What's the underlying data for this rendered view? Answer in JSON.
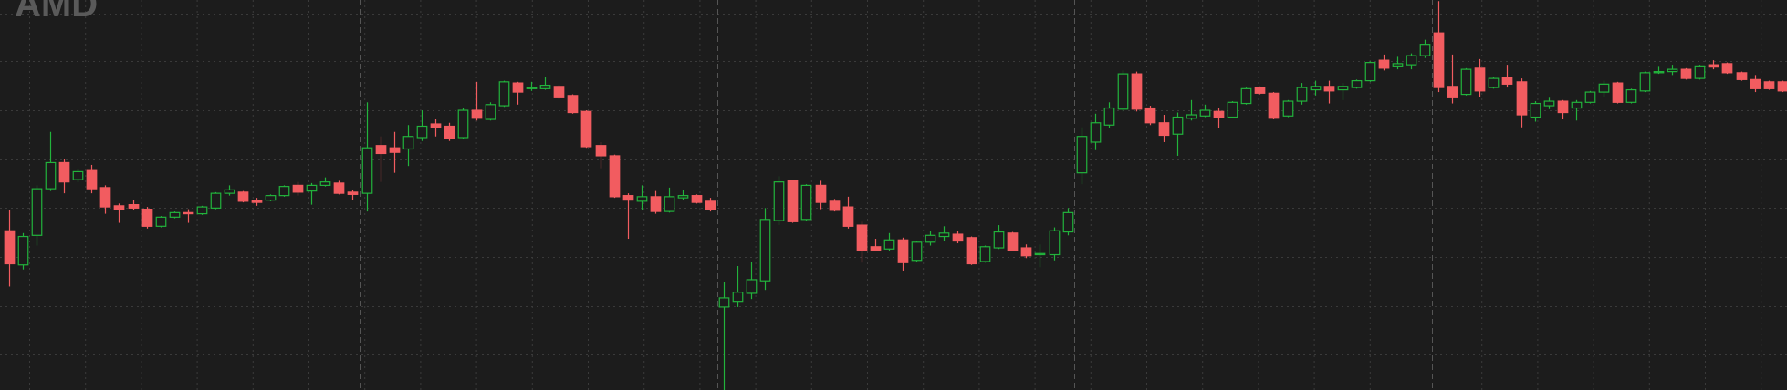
{
  "chart_data": {
    "type": "candlestick",
    "logo": "AMD",
    "ylim": [
      0,
      343
    ],
    "yticks": [
      31,
      74,
      117,
      160,
      203,
      246,
      289,
      331
    ],
    "grid": true,
    "session_starts": [
      26,
      52,
      78,
      104
    ],
    "up_color": "#22b33c",
    "down_color": "#f25c60",
    "open": [
      140,
      110,
      136,
      177,
      200,
      185,
      193,
      178,
      162,
      163,
      159,
      144,
      152,
      156,
      155,
      160,
      173,
      174,
      167,
      167,
      171,
      180,
      175,
      180,
      182,
      174,
      173,
      215,
      213,
      212,
      222,
      234,
      232,
      222,
      246,
      238,
      250,
      270,
      265,
      265,
      267,
      259,
      245,
      215,
      206,
      171,
      166,
      170,
      157,
      169,
      171,
      166,
      73,
      78,
      85,
      96,
      149,
      184,
      150,
      180,
      166,
      161,
      145,
      126,
      124,
      132,
      114,
      130,
      135,
      137,
      134,
      113,
      125,
      138,
      125,
      119,
      119,
      139,
      191,
      218,
      233,
      247,
      278,
      248,
      235,
      225,
      239,
      241,
      245,
      240,
      252,
      266,
      261,
      241,
      254,
      264,
      267,
      264,
      266,
      272,
      290,
      285,
      286,
      294,
      314,
      267,
      260,
      283,
      266,
      275,
      271,
      240,
      250,
      254,
      248,
      253,
      262,
      270,
      253,
      263,
      279,
      280,
      282,
      274,
      286,
      287,
      279,
      273,
      271,
      271
    ],
    "high": [
      158,
      138,
      180,
      227,
      203,
      194,
      198,
      180,
      164,
      167,
      161,
      153,
      157,
      159,
      162,
      174,
      180,
      175,
      169,
      172,
      180,
      183,
      182,
      187,
      184,
      176,
      253,
      223,
      227,
      233,
      246,
      238,
      235,
      248,
      271,
      253,
      272,
      271,
      271,
      275,
      268,
      260,
      246,
      218,
      207,
      173,
      180,
      175,
      178,
      176,
      172,
      169,
      95,
      109,
      113,
      160,
      188,
      185,
      181,
      184,
      168,
      170,
      148,
      133,
      138,
      134,
      131,
      140,
      144,
      140,
      135,
      127,
      145,
      139,
      128,
      128,
      143,
      160,
      231,
      243,
      253,
      281,
      280,
      250,
      242,
      244,
      255,
      251,
      248,
      254,
      266,
      267,
      262,
      255,
      270,
      272,
      272,
      270,
      273,
      289,
      295,
      293,
      296,
      308,
      342,
      295,
      283,
      291,
      275,
      286,
      274,
      254,
      257,
      255,
      255,
      263,
      272,
      271,
      265,
      280,
      285,
      286,
      283,
      286,
      290,
      288,
      280,
      277,
      272,
      272
    ],
    "low": [
      91,
      106,
      127,
      175,
      173,
      183,
      173,
      155,
      147,
      158,
      142,
      143,
      151,
      147,
      154,
      159,
      171,
      165,
      162,
      166,
      170,
      171,
      163,
      179,
      172,
      167,
      157,
      183,
      191,
      197,
      219,
      223,
      219,
      221,
      237,
      237,
      249,
      251,
      263,
      264,
      256,
      243,
      213,
      195,
      169,
      133,
      158,
      155,
      156,
      167,
      164,
      157,
      0,
      73,
      80,
      88,
      145,
      147,
      149,
      159,
      157,
      142,
      112,
      122,
      122,
      105,
      113,
      127,
      131,
      129,
      110,
      112,
      124,
      122,
      116,
      108,
      114,
      136,
      181,
      211,
      230,
      245,
      245,
      233,
      218,
      206,
      237,
      240,
      230,
      239,
      251,
      260,
      238,
      240,
      251,
      259,
      252,
      255,
      265,
      271,
      281,
      282,
      282,
      292,
      262,
      252,
      259,
      258,
      265,
      266,
      231,
      236,
      247,
      238,
      237,
      252,
      258,
      252,
      252,
      262,
      278,
      277,
      273,
      273,
      282,
      278,
      272,
      262,
      264,
      262
    ],
    "close": [
      111,
      135,
      177,
      200,
      183,
      192,
      177,
      161,
      159,
      160,
      144,
      152,
      156,
      155,
      161,
      173,
      176,
      166,
      165,
      171,
      179,
      174,
      180,
      183,
      173,
      172,
      213,
      208,
      209,
      223,
      232,
      231,
      221,
      246,
      239,
      251,
      271,
      262,
      266,
      268,
      257,
      244,
      214,
      206,
      170,
      167,
      170,
      157,
      170,
      171,
      165,
      159,
      81,
      86,
      97,
      150,
      183,
      148,
      180,
      165,
      158,
      144,
      123,
      123,
      132,
      112,
      130,
      136,
      138,
      131,
      111,
      126,
      139,
      123,
      118,
      120,
      140,
      156,
      223,
      235,
      248,
      278,
      247,
      235,
      224,
      240,
      242,
      246,
      240,
      253,
      265,
      261,
      239,
      254,
      266,
      267,
      263,
      267,
      272,
      288,
      283,
      287,
      294,
      304,
      266,
      257,
      282,
      263,
      274,
      269,
      242,
      252,
      254,
      244,
      253,
      262,
      269,
      253,
      264,
      279,
      280,
      282,
      274,
      285,
      284,
      279,
      273,
      265,
      265,
      263
    ]
  }
}
